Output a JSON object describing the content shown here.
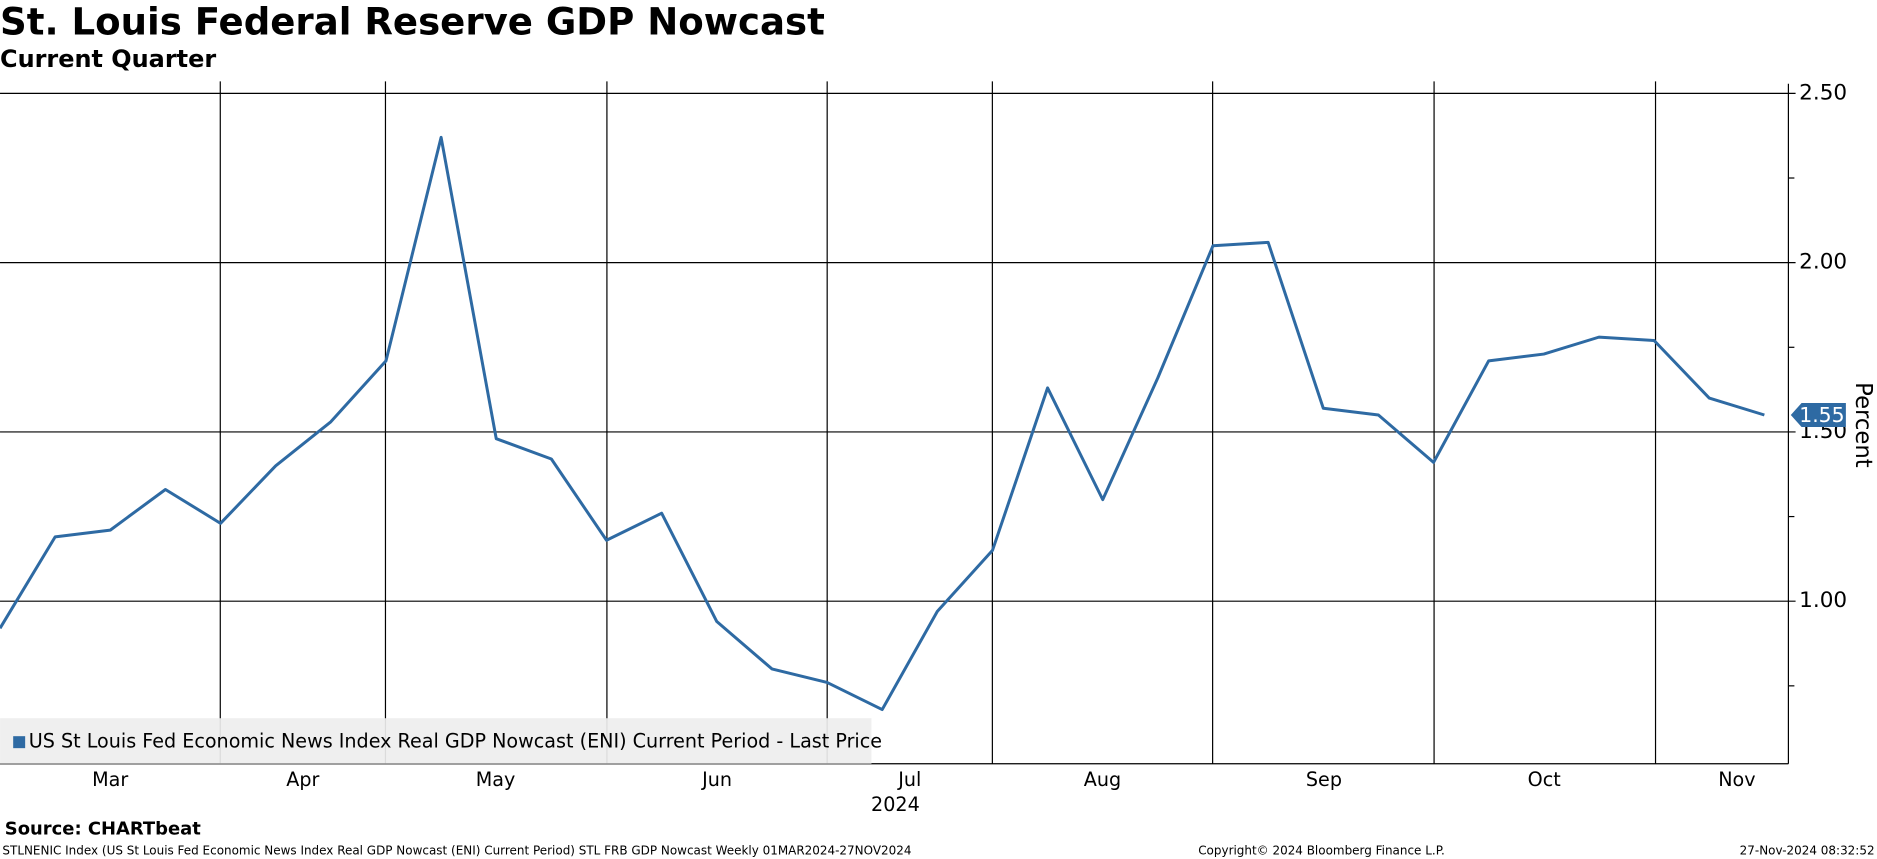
{
  "header": {
    "title": "St. Louis Federal Reserve GDP Nowcast",
    "subtitle": "Current Quarter"
  },
  "chart_data": {
    "type": "line",
    "series": [
      {
        "name": "US St Louis Fed Economic News Index Real GDP Nowcast (ENI) Current Period - Last Price",
        "color": "#2e6aa3",
        "values": [
          0.92,
          1.19,
          1.21,
          1.33,
          1.23,
          1.4,
          1.53,
          1.71,
          2.37,
          1.48,
          1.42,
          1.18,
          1.26,
          0.94,
          0.8,
          0.76,
          0.68,
          0.97,
          1.15,
          1.63,
          1.3,
          1.66,
          2.05,
          2.06,
          1.57,
          1.55,
          1.41,
          1.71,
          1.73,
          1.78,
          1.77,
          1.6,
          1.55
        ],
        "last_value_label": "1.55"
      }
    ],
    "x_labels": [
      "Mar",
      "Apr",
      "May",
      "Jun",
      "Jul",
      "Aug",
      "Sep",
      "Oct",
      "Nov"
    ],
    "x_year": "2024",
    "ylabel": "Percent",
    "ylim": [
      0.52,
      2.5
    ],
    "yticks": [
      {
        "value": 1,
        "label": "1.00"
      },
      {
        "value": 1.5,
        "label": "1.50"
      },
      {
        "value": 2,
        "label": "2.00"
      },
      {
        "value": 2.5,
        "label": "2.50"
      }
    ],
    "yminor": [
      0.75,
      1.25,
      1.75,
      2.25
    ],
    "grid": true
  },
  "footer": {
    "source": "Source: CHARTbeat",
    "description": "STLNENIC Index (US St Louis Fed Economic News Index Real GDP Nowcast (ENI) Current Period) STL FRB GDP Nowcast  Weekly 01MAR2024-27NOV2024",
    "copyright": "Copyright© 2024 Bloomberg Finance L.P.",
    "timestamp": "27-Nov-2024 08:32:52"
  }
}
